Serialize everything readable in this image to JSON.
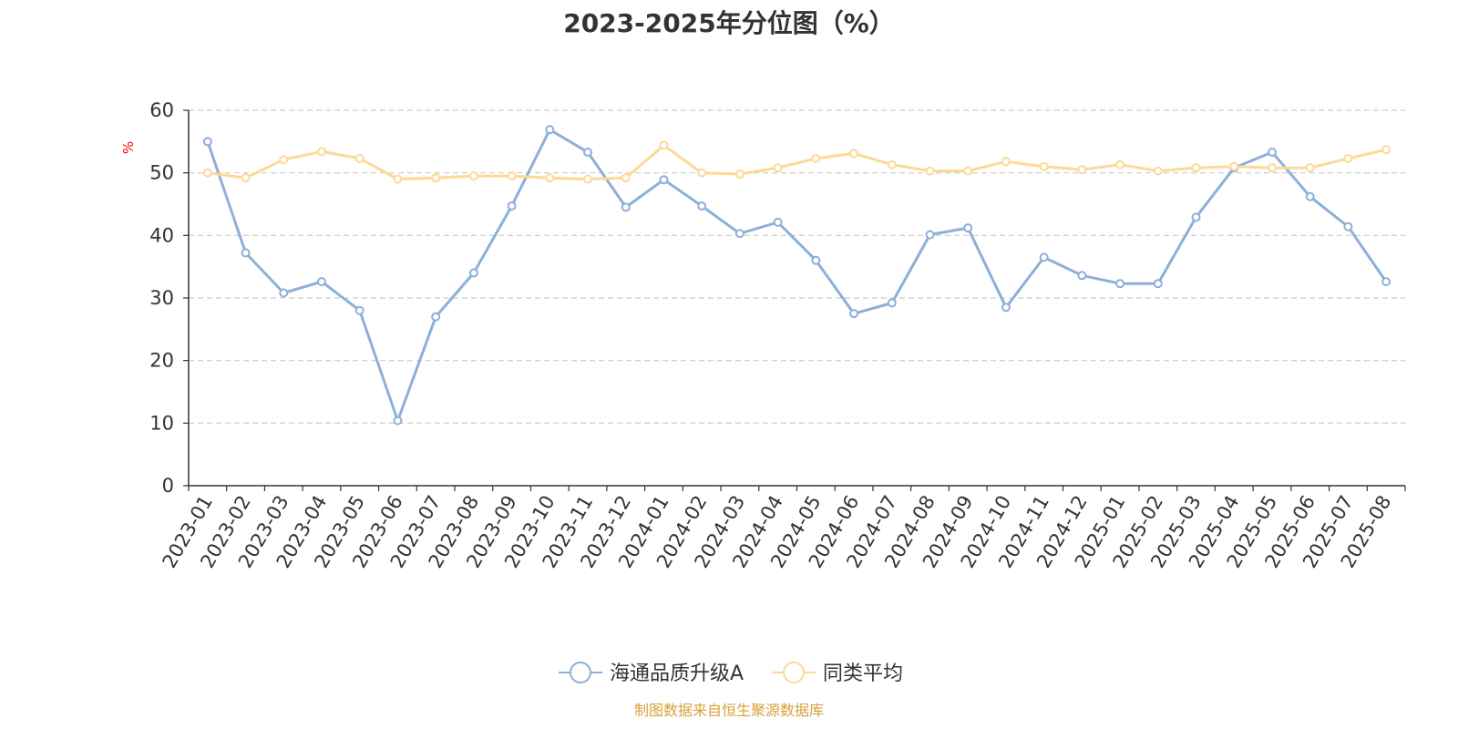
{
  "title": "2023-2025年分位图（%）",
  "footer": "制图数据来自恒生聚源数据库",
  "chart_data": {
    "type": "line",
    "title": "2023-2025年分位图（%）",
    "ylabel": "%",
    "xlabel": "",
    "ylim": [
      0,
      60
    ],
    "yticks": [
      0,
      10,
      20,
      30,
      40,
      50,
      60
    ],
    "grid": "horizontal dashed",
    "legend_position": "bottom-center",
    "categories": [
      "2023-01",
      "2023-02",
      "2023-03",
      "2023-04",
      "2023-05",
      "2023-06",
      "2023-07",
      "2023-08",
      "2023-09",
      "2023-10",
      "2023-11",
      "2023-12",
      "2024-01",
      "2024-02",
      "2024-03",
      "2024-04",
      "2024-05",
      "2024-06",
      "2024-07",
      "2024-08",
      "2024-09",
      "2024-10",
      "2024-11",
      "2024-12",
      "2025-01",
      "2025-02",
      "2025-03",
      "2025-04",
      "2025-05",
      "2025-06",
      "2025-07",
      "2025-08"
    ],
    "series": [
      {
        "name": "海通品质升级A",
        "color": "#8eafd9",
        "values": [
          55.0,
          37.2,
          30.8,
          32.6,
          28.0,
          10.4,
          27.0,
          34.0,
          44.7,
          56.9,
          53.3,
          44.5,
          48.9,
          44.7,
          40.3,
          42.1,
          36.0,
          27.5,
          29.2,
          40.1,
          41.2,
          28.5,
          36.5,
          33.6,
          32.3,
          32.3,
          42.9,
          50.8,
          53.3,
          46.2,
          41.4,
          32.6
        ]
      },
      {
        "name": "同类平均",
        "color": "#fcd997",
        "values": [
          50.0,
          49.2,
          52.1,
          53.4,
          52.3,
          49.0,
          49.2,
          49.5,
          49.5,
          49.2,
          49.0,
          49.2,
          54.4,
          50.0,
          49.8,
          50.8,
          52.3,
          53.1,
          51.3,
          50.3,
          50.3,
          51.8,
          51.0,
          50.5,
          51.3,
          50.3,
          50.8,
          51.0,
          50.8,
          50.8,
          52.3,
          53.7
        ]
      }
    ]
  }
}
